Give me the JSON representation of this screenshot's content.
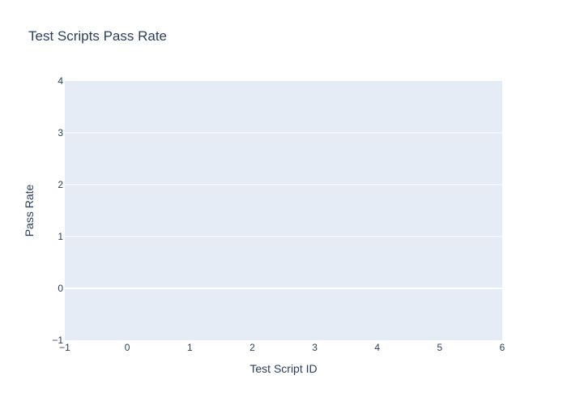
{
  "chart_data": {
    "type": "bar",
    "title": "Test Scripts Pass Rate",
    "xlabel": "Test Script ID",
    "ylabel": "Pass Rate",
    "x": [],
    "values": [],
    "xlim": [
      -1,
      6
    ],
    "ylim": [
      -1,
      4
    ],
    "x_ticks": [
      "−1",
      "0",
      "1",
      "2",
      "3",
      "4",
      "5",
      "6"
    ],
    "y_ticks": [
      "−1",
      "0",
      "1",
      "2",
      "3",
      "4"
    ],
    "grid": true,
    "colors": {
      "plot_background": "#e5ecf6",
      "gridline": "#ffffff",
      "text": "#2a3f5f",
      "zeroline": "#ffffff"
    }
  }
}
